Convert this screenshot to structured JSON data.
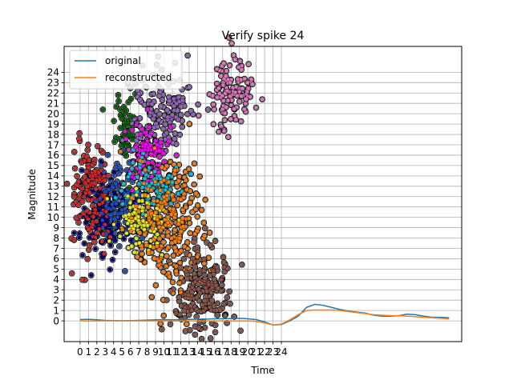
{
  "chart_data": {
    "type": "line",
    "title": "Verify spike 24",
    "xlabel": "Time",
    "ylabel": "Magnitude",
    "grid": true,
    "legend_placement": "top-left",
    "x_ticks": [
      "0",
      "1",
      "2",
      "3",
      "4",
      "5",
      "6",
      "7",
      "8",
      "9",
      "10",
      "11",
      "12",
      "13",
      "14",
      "15",
      "16",
      "17",
      "18",
      "19",
      "20",
      "21",
      "22",
      "23",
      "24"
    ],
    "y_ticks": [
      "0",
      "1",
      "2",
      "3",
      "4",
      "5",
      "6",
      "7",
      "8",
      "9",
      "10",
      "11",
      "12",
      "13",
      "14",
      "15",
      "16",
      "17",
      "18",
      "19",
      "20",
      "21",
      "22",
      "23",
      "24"
    ],
    "xlim": [
      -1.9,
      45.5
    ],
    "ylim": [
      -2.0,
      26.5
    ],
    "series": [
      {
        "name": "original",
        "color": "#1f77b4",
        "x": [
          0,
          1,
          2,
          3,
          4,
          5,
          6,
          7,
          8,
          9,
          10,
          11,
          12,
          13,
          14,
          15,
          16,
          17,
          18,
          19,
          20,
          21,
          22,
          23,
          24,
          25,
          26,
          27,
          28,
          29,
          30,
          31,
          32,
          33,
          34,
          35,
          36,
          37,
          38,
          39,
          40,
          41,
          42,
          43,
          44
        ],
        "y": [
          0.12,
          0.15,
          0.1,
          0.05,
          0.03,
          0.02,
          0.03,
          0.05,
          0.08,
          0.1,
          0.12,
          0.1,
          0.12,
          0.14,
          0.16,
          0.17,
          0.2,
          0.2,
          0.22,
          0.25,
          0.2,
          0.12,
          -0.1,
          -0.4,
          -0.35,
          0.0,
          0.45,
          1.3,
          1.6,
          1.5,
          1.3,
          1.1,
          0.95,
          0.85,
          0.75,
          0.55,
          0.45,
          0.45,
          0.5,
          0.65,
          0.6,
          0.45,
          0.35,
          0.35,
          0.3
        ]
      },
      {
        "name": "reconstructed",
        "color": "#ff7f0e",
        "x": [
          0,
          1,
          2,
          3,
          4,
          5,
          6,
          7,
          8,
          9,
          10,
          11,
          12,
          13,
          14,
          15,
          16,
          17,
          18,
          19,
          20,
          21,
          22,
          23,
          24,
          25,
          26,
          27,
          28,
          29,
          30,
          31,
          32,
          33,
          34,
          35,
          36,
          37,
          38,
          39,
          40,
          41,
          42,
          43,
          44
        ],
        "y": [
          0.0,
          0.0,
          0.0,
          0.0,
          0.0,
          0.0,
          0.0,
          0.0,
          0.0,
          0.0,
          0.0,
          0.0,
          0.0,
          0.0,
          0.0,
          0.0,
          0.0,
          0.0,
          0.0,
          0.0,
          0.0,
          -0.05,
          -0.2,
          -0.4,
          -0.3,
          0.1,
          0.6,
          1.0,
          1.05,
          1.05,
          1.05,
          1.0,
          0.9,
          0.8,
          0.7,
          0.6,
          0.55,
          0.5,
          0.5,
          0.45,
          0.4,
          0.35,
          0.3,
          0.25,
          0.2
        ]
      }
    ],
    "scatter_clusters": [
      {
        "color": "#000080",
        "n": 150,
        "cx": 3.0,
        "sx": 1.4,
        "yc": 10.5,
        "sy": 2.2
      },
      {
        "color": "#d62728",
        "n": 160,
        "cx": 1.3,
        "sx": 1.2,
        "yc": 12.0,
        "sy": 2.6
      },
      {
        "color": "#1f4fbf",
        "n": 110,
        "cx": 4.5,
        "sx": 1.2,
        "yc": 11.5,
        "sy": 2.0
      },
      {
        "color": "#006400",
        "n": 55,
        "cx": 5.5,
        "sx": 0.8,
        "yc": 19.0,
        "sy": 2.0
      },
      {
        "color": "#9467bd",
        "n": 150,
        "cx": 9.5,
        "sx": 1.8,
        "yc": 20.5,
        "sy": 2.0
      },
      {
        "color": "#ff00ff",
        "n": 90,
        "cx": 8.0,
        "sx": 1.5,
        "yc": 16.0,
        "sy": 1.5
      },
      {
        "color": "#17becf",
        "n": 90,
        "cx": 8.5,
        "sx": 1.6,
        "yc": 13.0,
        "sy": 1.4
      },
      {
        "color": "#e7e724",
        "n": 110,
        "cx": 7.5,
        "sx": 1.5,
        "yc": 9.5,
        "sy": 1.6
      },
      {
        "color": "#ff7f0e",
        "n": 240,
        "cx": 11.0,
        "sx": 2.2,
        "yc": 9.0,
        "sy": 3.2
      },
      {
        "color": "#8c564b",
        "n": 210,
        "cx": 14.5,
        "sx": 1.8,
        "yc": 3.2,
        "sy": 2.0
      },
      {
        "color": "#e377c2",
        "n": 110,
        "cx": 18.0,
        "sx": 1.4,
        "yc": 22.0,
        "sy": 1.6
      }
    ]
  }
}
